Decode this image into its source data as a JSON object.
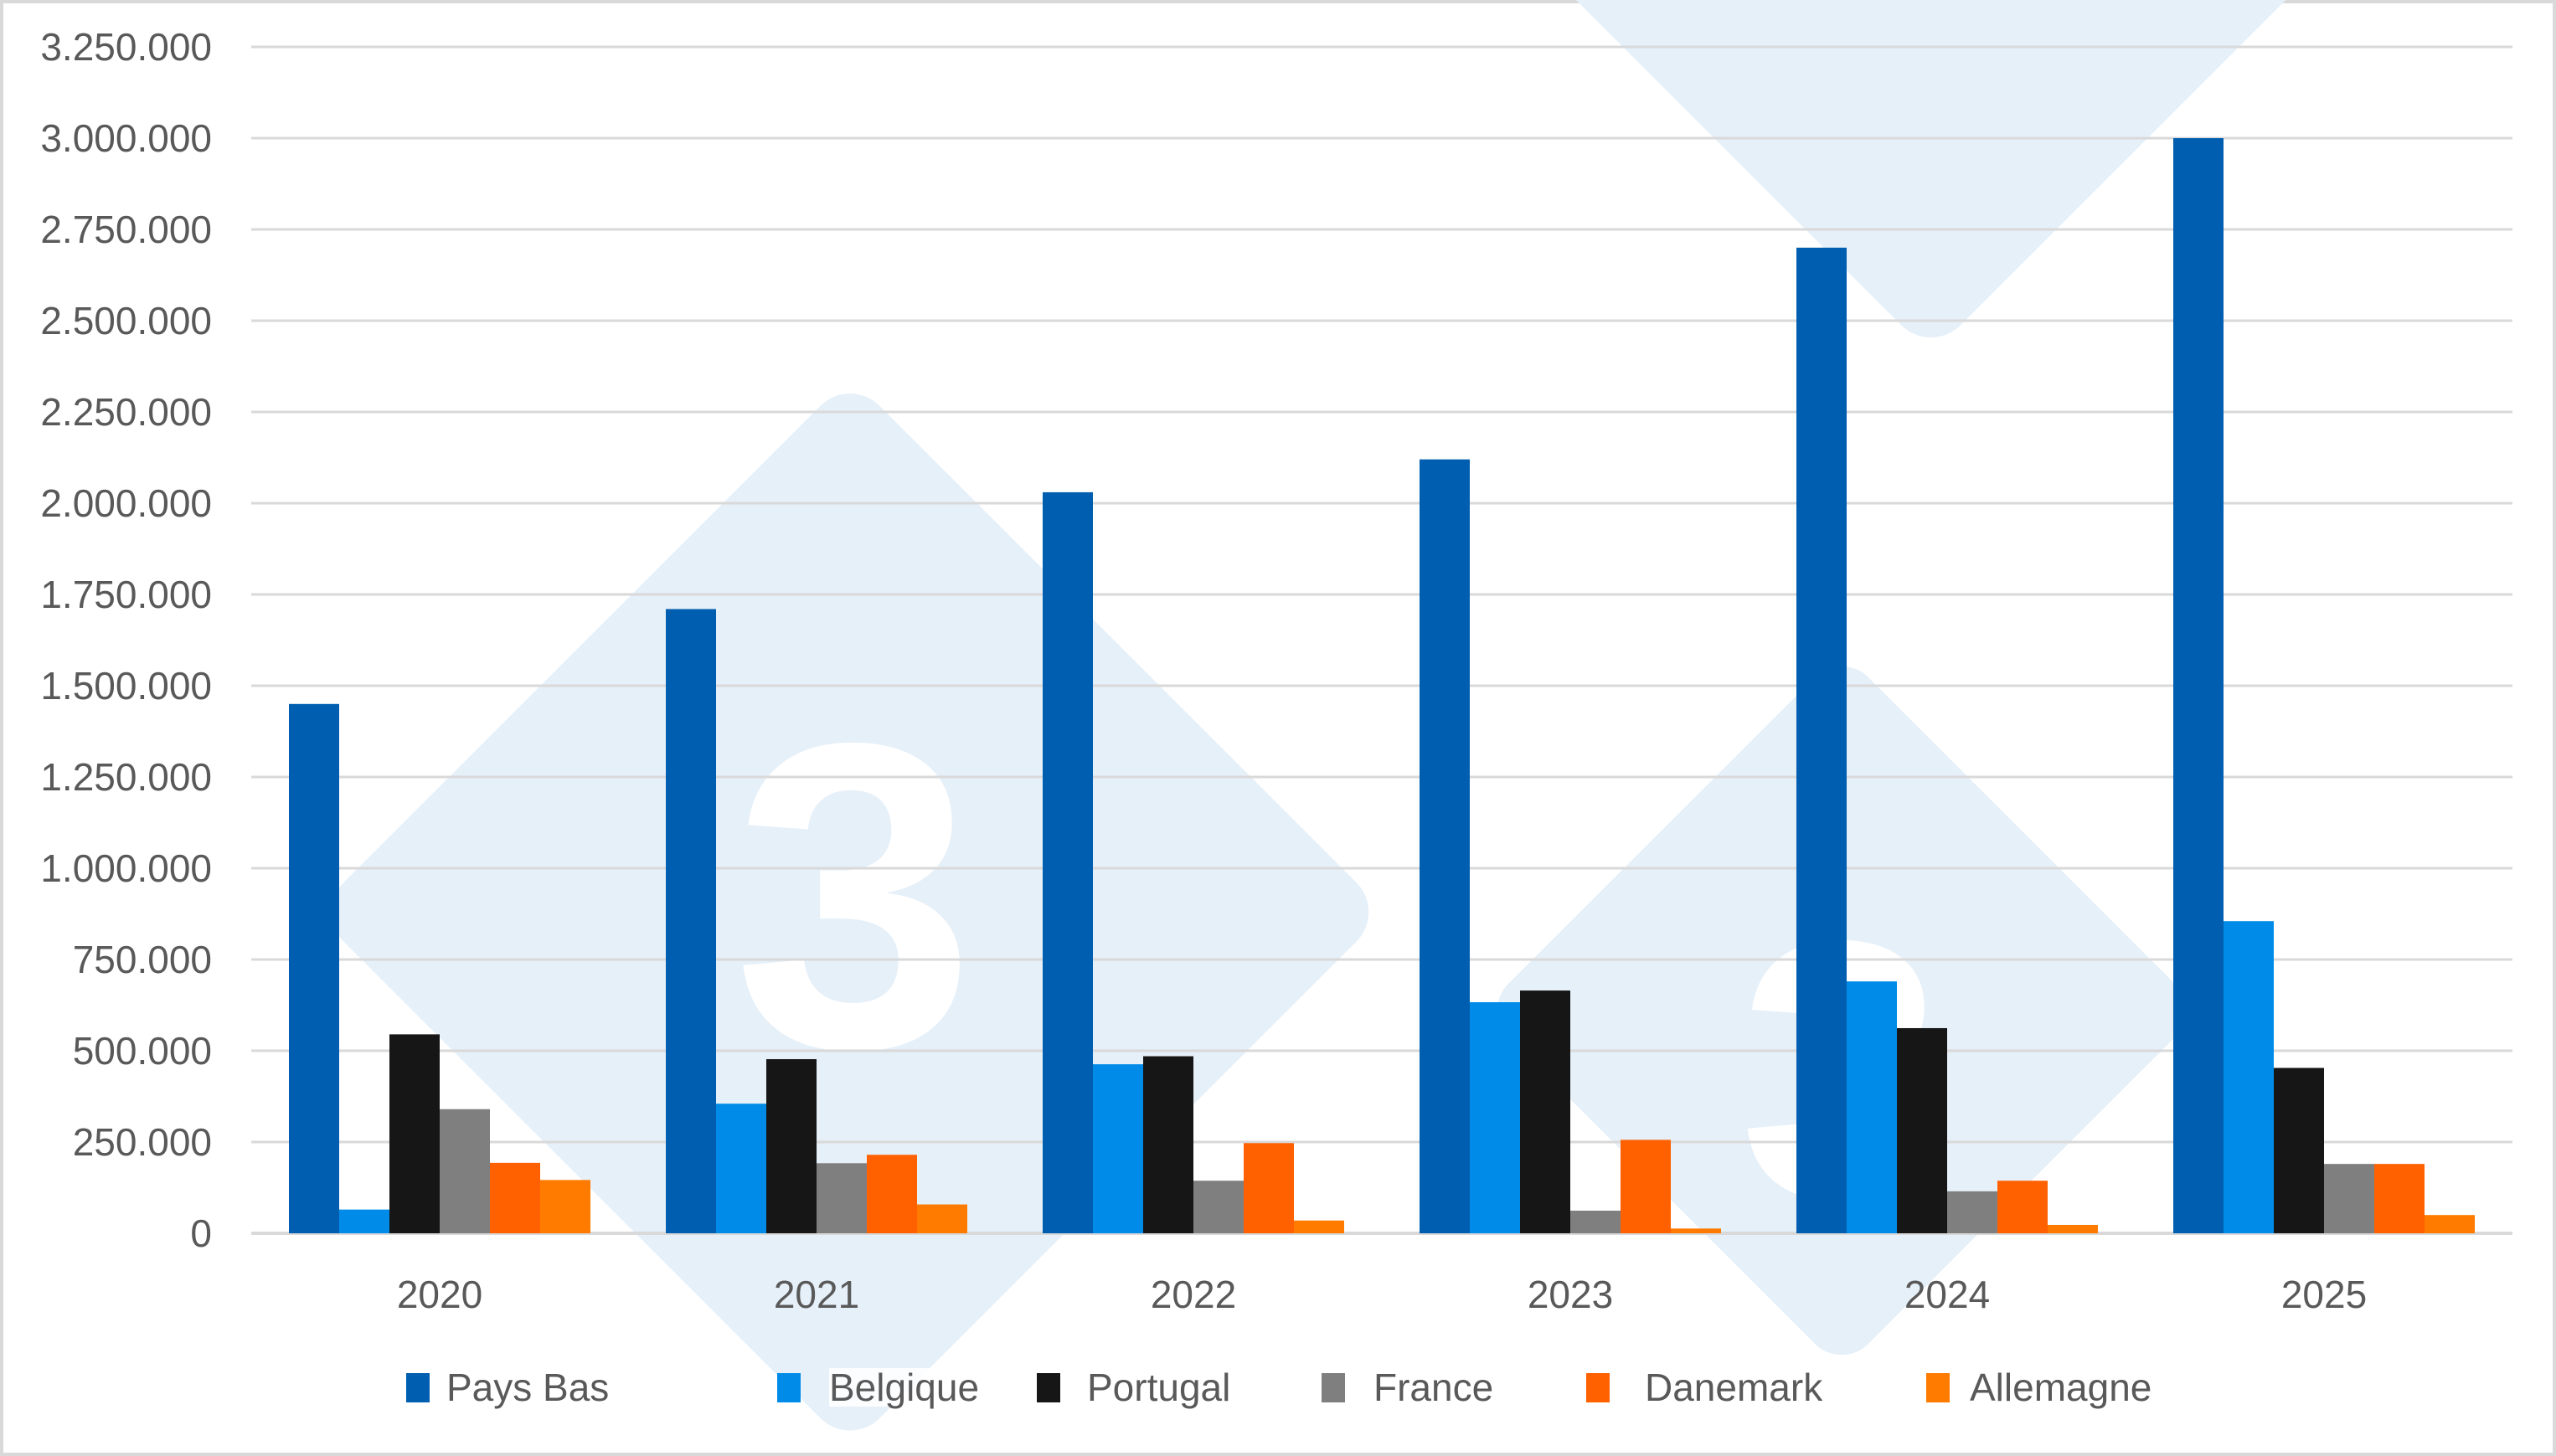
{
  "chart_data": {
    "type": "bar",
    "title": "",
    "xlabel": "",
    "ylabel": "",
    "ylim": [
      0,
      3250000
    ],
    "yticks": [
      0,
      250000,
      500000,
      750000,
      1000000,
      1250000,
      1500000,
      1750000,
      2000000,
      2250000,
      2500000,
      2750000,
      3000000,
      3250000
    ],
    "ytick_labels": [
      "0",
      "250.000",
      "500.000",
      "750.000",
      "1.000.000",
      "1.250.000",
      "1.500.000",
      "1.750.000",
      "2.000.000",
      "2.250.000",
      "2.500.000",
      "2.750.000",
      "3.000.000",
      "3.250.000"
    ],
    "grid": true,
    "legend_position": "bottom",
    "categories": [
      "2020",
      "2021",
      "2022",
      "2023",
      "2024",
      "2025"
    ],
    "series": [
      {
        "name": "Pays Bas",
        "color": "#005EB0",
        "values": [
          1450000,
          1710000,
          2030000,
          2120000,
          2700000,
          3000000
        ]
      },
      {
        "name": "Belgique",
        "color": "#008BE8",
        "values": [
          65000,
          355000,
          463000,
          633000,
          690000,
          855000
        ]
      },
      {
        "name": "Portugal",
        "color": "#161616",
        "values": [
          545000,
          477000,
          485000,
          665000,
          562000,
          453000
        ]
      },
      {
        "name": "France",
        "color": "#7F7F7F",
        "values": [
          340000,
          192000,
          144000,
          62000,
          115000,
          190000
        ]
      },
      {
        "name": "Danemark",
        "color": "#FF6000",
        "values": [
          193000,
          215000,
          247000,
          256000,
          144000,
          190000
        ]
      },
      {
        "name": "Allemagne",
        "color": "#FF7B00",
        "values": [
          146000,
          79000,
          35000,
          13000,
          23000,
          50000
        ]
      }
    ]
  },
  "colors": {
    "gridline": "#d9d9d9",
    "axis_text": "#595959",
    "watermark_fill": "#e6f0f9"
  },
  "legend": {
    "items": [
      {
        "label": "Pays Bas",
        "color": "#005EB0"
      },
      {
        "label": "Belgique",
        "color": "#008BE8"
      },
      {
        "label": "Portugal",
        "color": "#161616"
      },
      {
        "label": "France",
        "color": "#7F7F7F"
      },
      {
        "label": "Danemark",
        "color": "#FF6000"
      },
      {
        "label": "Allemagne",
        "color": "#FF7B00"
      }
    ]
  },
  "watermark": {
    "glyph": "3",
    "icon": "brand-diamond-logo-icon"
  }
}
